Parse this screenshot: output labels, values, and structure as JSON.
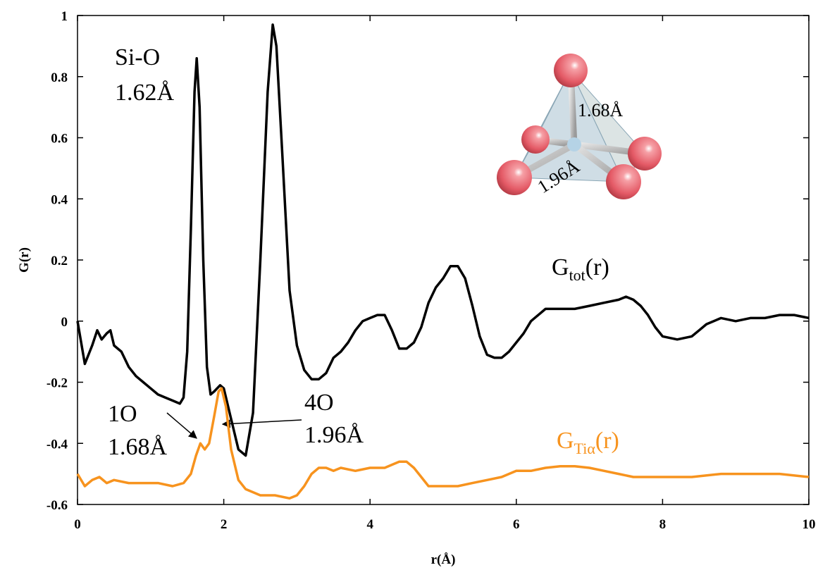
{
  "chart_data": {
    "type": "line",
    "xlabel": "r(Å)",
    "ylabel": "G(r)",
    "xlim": [
      0,
      10
    ],
    "ylim": [
      -0.6,
      1
    ],
    "xticks": [
      0,
      2,
      4,
      6,
      8,
      10
    ],
    "yticks": [
      -0.6,
      -0.4,
      -0.2,
      0,
      0.2,
      0.4,
      0.6,
      0.8,
      1
    ],
    "annotations": [
      "Si-O",
      "1.62Å",
      "1O",
      "1.68Å",
      "4O",
      "1.96Å",
      "1.68Å",
      "1.96Å"
    ],
    "series": [
      {
        "label": {
          "main": "G",
          "sub": "tot",
          "tail": "(r)"
        },
        "color": "#000000",
        "x": [
          0,
          0.1,
          0.2,
          0.27,
          0.33,
          0.4,
          0.45,
          0.5,
          0.6,
          0.7,
          0.8,
          0.9,
          1.0,
          1.1,
          1.2,
          1.3,
          1.4,
          1.45,
          1.5,
          1.55,
          1.6,
          1.63,
          1.67,
          1.72,
          1.77,
          1.82,
          1.87,
          1.95,
          2.0,
          2.1,
          2.2,
          2.3,
          2.4,
          2.5,
          2.6,
          2.67,
          2.72,
          2.8,
          2.9,
          3.0,
          3.1,
          3.2,
          3.3,
          3.4,
          3.5,
          3.6,
          3.7,
          3.8,
          3.9,
          4.0,
          4.1,
          4.2,
          4.3,
          4.4,
          4.5,
          4.6,
          4.7,
          4.8,
          4.9,
          5.0,
          5.1,
          5.2,
          5.3,
          5.4,
          5.5,
          5.6,
          5.7,
          5.8,
          5.9,
          6.0,
          6.1,
          6.2,
          6.4,
          6.6,
          6.8,
          7.0,
          7.2,
          7.4,
          7.5,
          7.6,
          7.7,
          7.8,
          7.9,
          8.0,
          8.2,
          8.4,
          8.5,
          8.6,
          8.8,
          9.0,
          9.2,
          9.4,
          9.6,
          9.8,
          10.0
        ],
        "values": [
          0.0,
          -0.14,
          -0.08,
          -0.03,
          -0.06,
          -0.04,
          -0.03,
          -0.08,
          -0.1,
          -0.15,
          -0.18,
          -0.2,
          -0.22,
          -0.24,
          -0.25,
          -0.26,
          -0.27,
          -0.25,
          -0.1,
          0.3,
          0.75,
          0.86,
          0.7,
          0.2,
          -0.15,
          -0.24,
          -0.23,
          -0.21,
          -0.22,
          -0.32,
          -0.42,
          -0.44,
          -0.3,
          0.2,
          0.75,
          0.97,
          0.9,
          0.55,
          0.1,
          -0.08,
          -0.16,
          -0.19,
          -0.19,
          -0.17,
          -0.12,
          -0.1,
          -0.07,
          -0.03,
          0.0,
          0.01,
          0.02,
          0.02,
          -0.03,
          -0.09,
          -0.09,
          -0.07,
          -0.02,
          0.06,
          0.11,
          0.14,
          0.18,
          0.18,
          0.14,
          0.05,
          -0.05,
          -0.11,
          -0.12,
          -0.12,
          -0.1,
          -0.07,
          -0.04,
          0.0,
          0.04,
          0.04,
          0.04,
          0.05,
          0.06,
          0.07,
          0.08,
          0.07,
          0.05,
          0.02,
          -0.02,
          -0.05,
          -0.06,
          -0.05,
          -0.03,
          -0.01,
          0.01,
          0.0,
          0.01,
          0.01,
          0.02,
          0.02,
          0.01
        ]
      },
      {
        "label": {
          "main": "G",
          "sub": "Tiα",
          "tail": "(r)"
        },
        "color": "#f7931e",
        "x": [
          0,
          0.1,
          0.2,
          0.3,
          0.4,
          0.5,
          0.7,
          0.9,
          1.1,
          1.3,
          1.45,
          1.55,
          1.62,
          1.68,
          1.74,
          1.8,
          1.87,
          1.93,
          1.97,
          2.03,
          2.1,
          2.2,
          2.3,
          2.5,
          2.7,
          2.9,
          3.0,
          3.1,
          3.2,
          3.3,
          3.4,
          3.5,
          3.6,
          3.8,
          4.0,
          4.2,
          4.3,
          4.4,
          4.5,
          4.6,
          4.7,
          4.8,
          5.0,
          5.2,
          5.4,
          5.6,
          5.8,
          6.0,
          6.2,
          6.4,
          6.6,
          6.8,
          7.0,
          7.2,
          7.4,
          7.6,
          7.8,
          8.0,
          8.4,
          8.8,
          9.2,
          9.6,
          10.0
        ],
        "values": [
          -0.5,
          -0.54,
          -0.52,
          -0.51,
          -0.53,
          -0.52,
          -0.53,
          -0.53,
          -0.53,
          -0.54,
          -0.53,
          -0.5,
          -0.44,
          -0.4,
          -0.42,
          -0.4,
          -0.31,
          -0.23,
          -0.22,
          -0.28,
          -0.42,
          -0.52,
          -0.55,
          -0.57,
          -0.57,
          -0.58,
          -0.57,
          -0.54,
          -0.5,
          -0.48,
          -0.48,
          -0.49,
          -0.48,
          -0.49,
          -0.48,
          -0.48,
          -0.47,
          -0.46,
          -0.46,
          -0.48,
          -0.51,
          -0.54,
          -0.54,
          -0.54,
          -0.53,
          -0.52,
          -0.51,
          -0.49,
          -0.49,
          -0.48,
          -0.475,
          -0.475,
          -0.48,
          -0.49,
          -0.5,
          -0.51,
          -0.51,
          -0.51,
          -0.51,
          -0.5,
          -0.5,
          -0.5,
          -0.51
        ]
      }
    ]
  }
}
